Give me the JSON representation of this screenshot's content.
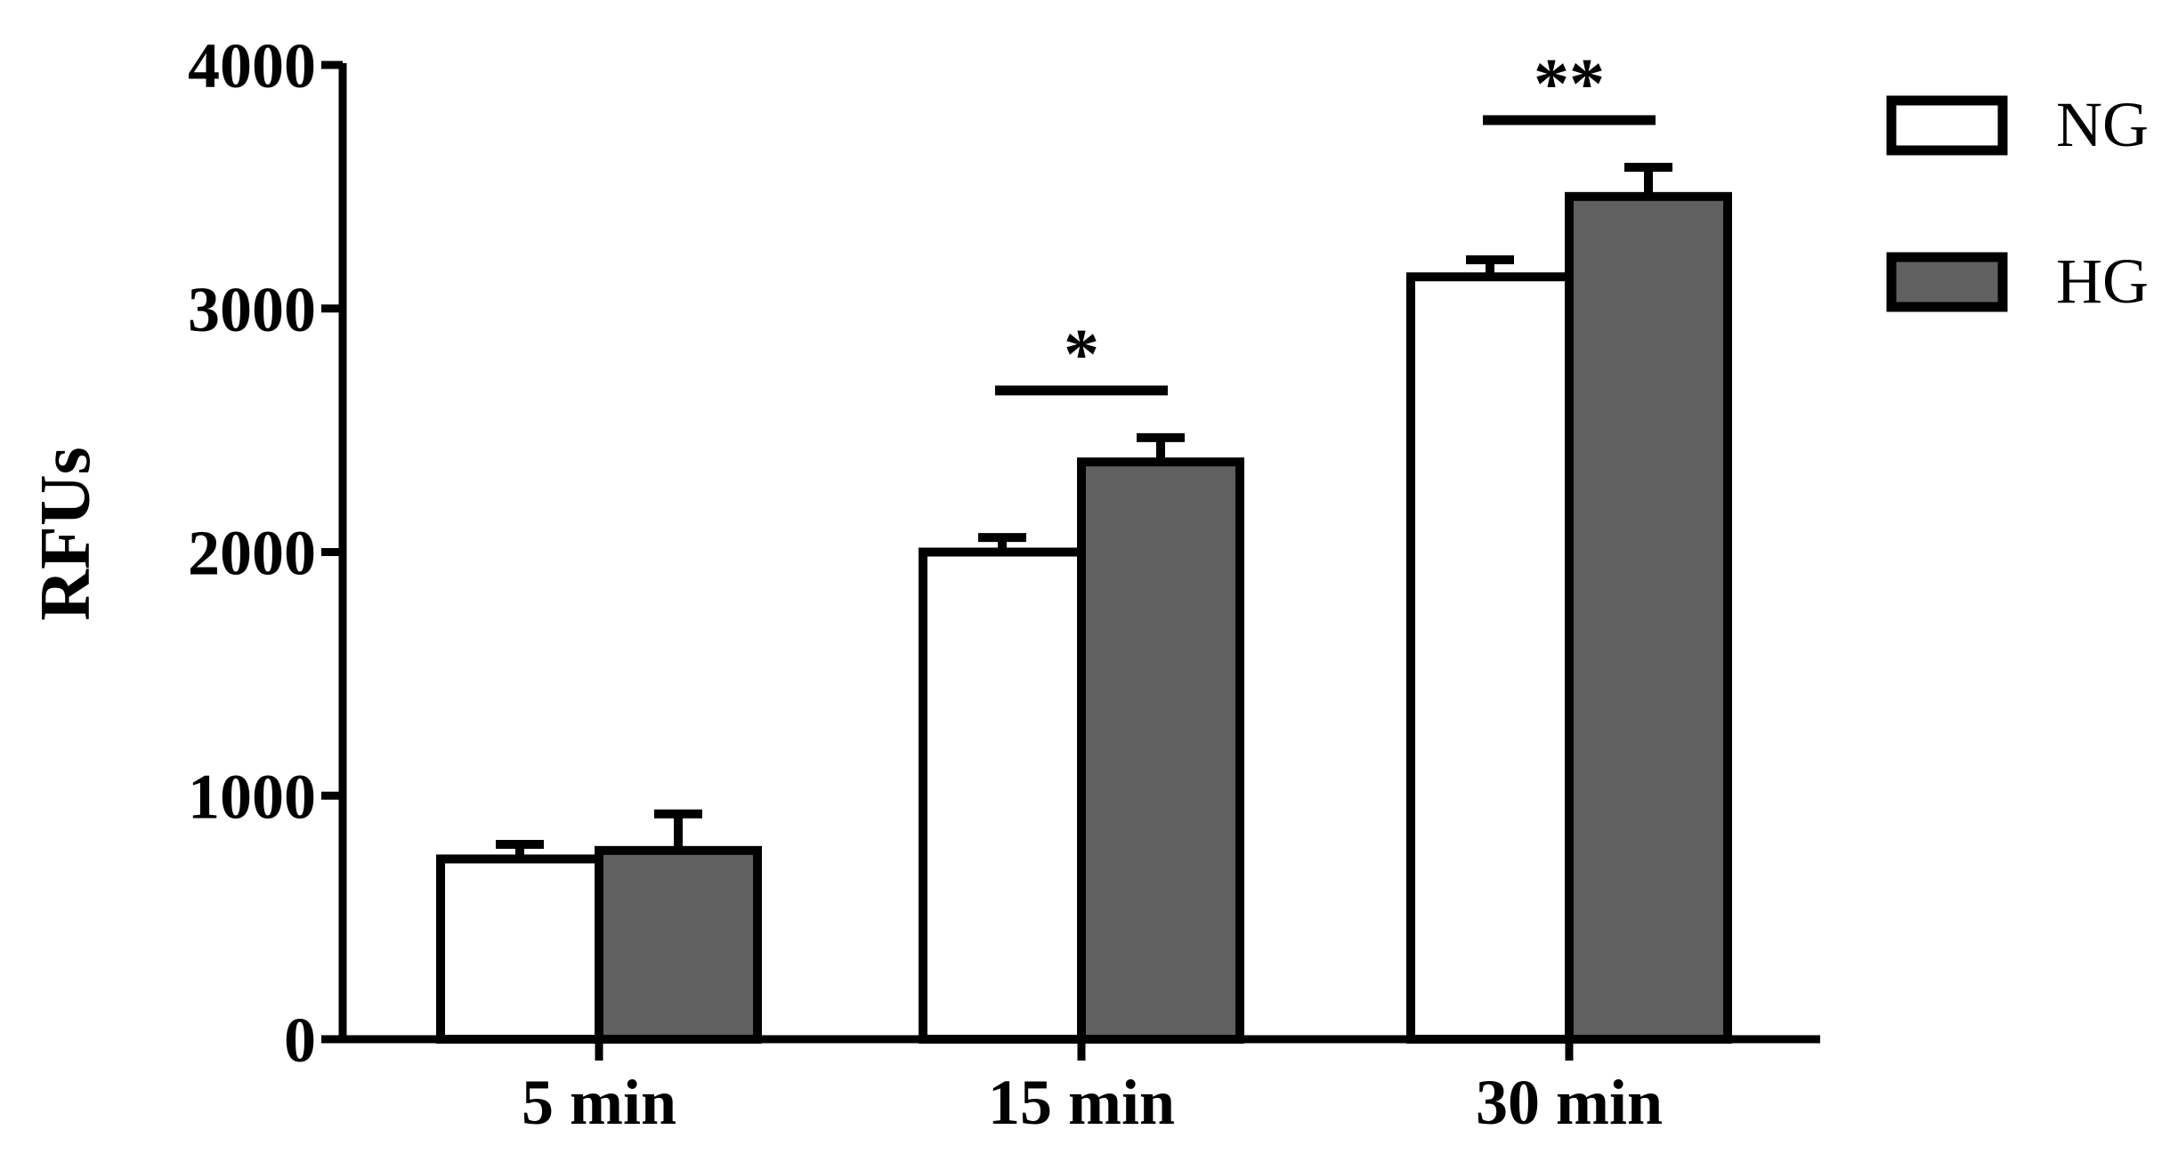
{
  "chart_data": {
    "type": "bar",
    "categories": [
      "5 min",
      "15 min",
      "30 min"
    ],
    "series": [
      {
        "name": "NG",
        "values": [
          740,
          2000,
          3130
        ],
        "errors": [
          60,
          60,
          70
        ]
      },
      {
        "name": "HG",
        "values": [
          775,
          2370,
          3460
        ],
        "errors": [
          150,
          100,
          120
        ]
      }
    ],
    "colors": {
      "NG": "#ffffff",
      "HG": "#606060",
      "stroke": "#000000"
    },
    "title": "",
    "xlabel": "",
    "ylabel": "RFUs",
    "ylim": [
      0,
      4000
    ],
    "yticks": [
      0,
      1000,
      2000,
      3000,
      4000
    ],
    "ytick_labels": [
      "0",
      "1000",
      "2000",
      "3000",
      "4000"
    ],
    "significance": [
      {
        "category": "15 min",
        "label": "*"
      },
      {
        "category": "30 min",
        "label": "**"
      }
    ],
    "legend_position": "top-right",
    "grid": false
  }
}
